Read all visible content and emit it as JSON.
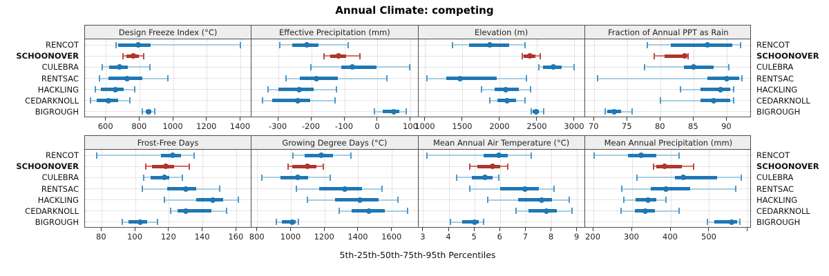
{
  "title": "Annual Climate: competing",
  "xlabel": "5th-25th-50th-75th-95th Percentiles",
  "sites": [
    "RENCOT",
    "SCHOONOVER",
    "CULEBRA",
    "RENTSAC",
    "HACKLING",
    "CEDARKNOLL",
    "BIGROUGH"
  ],
  "highlight_site": "SCHOONOVER",
  "colors": {
    "normal": {
      "main": "#1f77b4",
      "light": "#a6cde4",
      "cap": "#4e97c6"
    },
    "highlight": {
      "main": "#b0342a",
      "light": "#cf6e63",
      "cap": "#bb4a3f"
    },
    "grid": "#cccccc",
    "strip_bg": "#eeeeee",
    "border": "#4d4d4d"
  },
  "chart_data": {
    "type": "dotplot-percentile-intervals",
    "percentile_labels": [
      "5th",
      "25th",
      "50th",
      "75th",
      "95th"
    ],
    "layout": {
      "grid_rows": 2,
      "grid_cols": 4,
      "legend": "none",
      "grid": "dotted"
    },
    "panels": [
      {
        "title": "Design Freeze Index (°C)",
        "ticks": [
          600,
          800,
          1000,
          1200,
          1400
        ],
        "tick_labels": [
          "600",
          "800",
          "1000",
          "1200",
          "1400"
        ],
        "xlim": [
          474,
          1465
        ],
        "series": [
          {
            "site": "RENCOT",
            "values": [
              660,
              672,
              790,
              863,
              1400
            ]
          },
          {
            "site": "SCHOONOVER",
            "values": [
              700,
              720,
              762,
              795,
              825
            ]
          },
          {
            "site": "CULEBRA",
            "values": [
              575,
              618,
              680,
              728,
              860
            ]
          },
          {
            "site": "RENTSAC",
            "values": [
              560,
              612,
              723,
              815,
              968
            ]
          },
          {
            "site": "HACKLING",
            "values": [
              535,
              570,
              653,
              705,
              770
            ]
          },
          {
            "site": "CEDARKNOLL",
            "values": [
              505,
              543,
              615,
              670,
              740
            ]
          },
          {
            "site": "BIGROUGH",
            "values": [
              815,
              835,
              852,
              870,
              890
            ]
          }
        ]
      },
      {
        "title": "Effective Precipitation (mm)",
        "ticks": [
          -300,
          -200,
          -100,
          0,
          100
        ],
        "tick_labels": [
          "-300",
          "-200",
          "-100",
          "0",
          "100"
        ],
        "xlim": [
          -381,
          122
        ],
        "series": [
          {
            "site": "RENCOT",
            "values": [
              -295,
              -258,
              -215,
              -179,
              -89
            ]
          },
          {
            "site": "SCHOONOVER",
            "values": [
              -162,
              -144,
              -118,
              -96,
              -54
            ]
          },
          {
            "site": "CULEBRA",
            "values": [
              -203,
              -110,
              -78,
              -5,
              95
            ]
          },
          {
            "site": "RENTSAC",
            "values": [
              -278,
              -235,
              -185,
              -121,
              28
            ]
          },
          {
            "site": "HACKLING",
            "values": [
              -332,
              -300,
              -238,
              -193,
              -125
            ]
          },
          {
            "site": "CEDARKNOLL",
            "values": [
              -349,
              -319,
              -242,
              -204,
              -129
            ]
          },
          {
            "site": "BIGROUGH",
            "values": [
              -10,
              15,
              48,
              65,
              85
            ]
          }
        ]
      },
      {
        "title": "Elevation (m)",
        "ticks": [
          1000,
          1500,
          2000,
          2500,
          3000
        ],
        "tick_labels": [
          "1000",
          "1500",
          "2000",
          "2500",
          "3000"
        ],
        "xlim": [
          903,
          3137
        ],
        "series": [
          {
            "site": "RENCOT",
            "values": [
              1360,
              1580,
              1860,
              2120,
              2330
            ]
          },
          {
            "site": "SCHOONOVER",
            "values": [
              2295,
              2315,
              2400,
              2475,
              2535
            ]
          },
          {
            "site": "CULEBRA",
            "values": [
              2515,
              2570,
              2715,
              2820,
              2990
            ]
          },
          {
            "site": "RENTSAC",
            "values": [
              1020,
              1275,
              1465,
              1950,
              2350
            ]
          },
          {
            "site": "HACKLING",
            "values": [
              1750,
              1930,
              2075,
              2250,
              2410
            ]
          },
          {
            "site": "CEDARKNOLL",
            "values": [
              1860,
              1965,
              2095,
              2215,
              2335
            ]
          },
          {
            "site": "BIGROUGH",
            "values": [
              2420,
              2440,
              2480,
              2520,
              2585
            ]
          }
        ]
      },
      {
        "title": "Fraction of Annual PPT as Rain",
        "ticks": [
          70,
          75,
          80,
          85,
          90
        ],
        "tick_labels": [
          "70",
          "75",
          "80",
          "85",
          "90"
        ],
        "xlim": [
          68.6,
          93.7
        ],
        "series": [
          {
            "site": "RENCOT",
            "values": [
              78,
              81.5,
              87,
              90.8,
              92
            ]
          },
          {
            "site": "SCHOONOVER",
            "values": [
              79,
              80.6,
              83.6,
              83.9,
              84.1
            ]
          },
          {
            "site": "CULEBRA",
            "values": [
              77.6,
              83.5,
              85,
              88,
              90.3
            ]
          },
          {
            "site": "RENTSAC",
            "values": [
              70.5,
              87,
              90,
              91.8,
              92.2
            ]
          },
          {
            "site": "HACKLING",
            "values": [
              83,
              86,
              89,
              90.5,
              91
            ]
          },
          {
            "site": "CEDARKNOLL",
            "values": [
              80,
              86,
              88,
              90.5,
              91
            ]
          },
          {
            "site": "BIGROUGH",
            "values": [
              71.6,
              72,
              73,
              74,
              75.7
            ]
          }
        ]
      },
      {
        "title": "Frost-Free Days",
        "ticks": [
          80,
          100,
          120,
          140,
          160
        ],
        "tick_labels": [
          "80",
          "100",
          "120",
          "140",
          "160"
        ],
        "xlim": [
          70,
          169
        ],
        "series": [
          {
            "site": "RENCOT",
            "values": [
              77,
              115,
              122,
              127,
              135
            ]
          },
          {
            "site": "SCHOONOVER",
            "values": [
              106,
              110,
              118,
              123,
              132
            ]
          },
          {
            "site": "CULEBRA",
            "values": [
              105,
              109,
              117,
              120,
              128
            ]
          },
          {
            "site": "RENTSAC",
            "values": [
              104,
              119,
              130,
              136,
              150
            ]
          },
          {
            "site": "HACKLING",
            "values": [
              117,
              136,
              146,
              152,
              161
            ]
          },
          {
            "site": "CEDARKNOLL",
            "values": [
              121,
              125,
              130,
              145,
              154
            ]
          },
          {
            "site": "BIGROUGH",
            "values": [
              92,
              96,
              103,
              107,
              113
            ]
          }
        ]
      },
      {
        "title": "Growing Degree Days (°C)",
        "ticks": [
          800,
          1000,
          1200,
          1400,
          1600
        ],
        "tick_labels": [
          "800",
          "1000",
          "1200",
          "1400",
          "1600"
        ],
        "xlim": [
          765,
          1755
        ],
        "series": [
          {
            "site": "RENCOT",
            "values": [
              1010,
              1080,
              1180,
              1250,
              1355
            ]
          },
          {
            "site": "SCHOONOVER",
            "values": [
              980,
              1005,
              1095,
              1150,
              1190
            ]
          },
          {
            "site": "CULEBRA",
            "values": [
              825,
              935,
              1040,
              1100,
              1230
            ]
          },
          {
            "site": "RENTSAC",
            "values": [
              1030,
              1165,
              1320,
              1420,
              1540
            ]
          },
          {
            "site": "HACKLING",
            "values": [
              1095,
              1260,
              1410,
              1520,
              1635
            ]
          },
          {
            "site": "CEDARKNOLL",
            "values": [
              1285,
              1360,
              1460,
              1555,
              1690
            ]
          },
          {
            "site": "BIGROUGH",
            "values": [
              910,
              945,
              1005,
              1025,
              1042
            ]
          }
        ]
      },
      {
        "title": "Mean Annual Air Temperature (°C)",
        "ticks": [
          3,
          4,
          5,
          6,
          7,
          8,
          9
        ],
        "tick_labels": [
          "3",
          "4",
          "5",
          "6",
          "7",
          "8",
          "9"
        ],
        "xlim": [
          2.8,
          9.3
        ],
        "series": [
          {
            "site": "RENCOT",
            "values": [
              3.15,
              5.35,
              5.95,
              6.3,
              7.2
            ]
          },
          {
            "site": "SCHOONOVER",
            "values": [
              4.8,
              5.1,
              5.7,
              6.0,
              6.3
            ]
          },
          {
            "site": "CULEBRA",
            "values": [
              4.3,
              4.9,
              5.4,
              5.7,
              5.95
            ]
          },
          {
            "site": "RENTSAC",
            "values": [
              4.8,
              6.0,
              6.95,
              7.5,
              8.1
            ]
          },
          {
            "site": "HACKLING",
            "values": [
              5.5,
              6.7,
              7.6,
              8.0,
              8.7
            ]
          },
          {
            "site": "CEDARKNOLL",
            "values": [
              6.6,
              7.1,
              7.8,
              8.2,
              8.8
            ]
          },
          {
            "site": "BIGROUGH",
            "values": [
              4.05,
              4.5,
              5.0,
              5.15,
              5.35
            ]
          }
        ]
      },
      {
        "title": "Mean Annual Precipitation (mm)",
        "ticks": [
          200,
          300,
          400,
          500,
          600
        ],
        "tick_labels": [
          "200",
          "300",
          "400",
          "500",
          ""
        ],
        "xlim": [
          178,
          609
        ],
        "series": [
          {
            "site": "RENCOT",
            "values": [
              202,
              289,
              323,
              363,
              421
            ]
          },
          {
            "site": "SCHOONOVER",
            "values": [
              355,
              363,
              384,
              428,
              459
            ]
          },
          {
            "site": "CULEBRA",
            "values": [
              312,
              410,
              432,
              520,
              583
            ]
          },
          {
            "site": "RENTSAC",
            "values": [
              274,
              349,
              388,
              450,
              568
            ]
          },
          {
            "site": "HACKLING",
            "values": [
              279,
              309,
              341,
              363,
              388
            ]
          },
          {
            "site": "CEDARKNOLL",
            "values": [
              271,
              307,
              333,
              359,
              421
            ]
          },
          {
            "site": "BIGROUGH",
            "values": [
              494,
              512,
              558,
              572,
              579
            ]
          }
        ]
      }
    ]
  }
}
